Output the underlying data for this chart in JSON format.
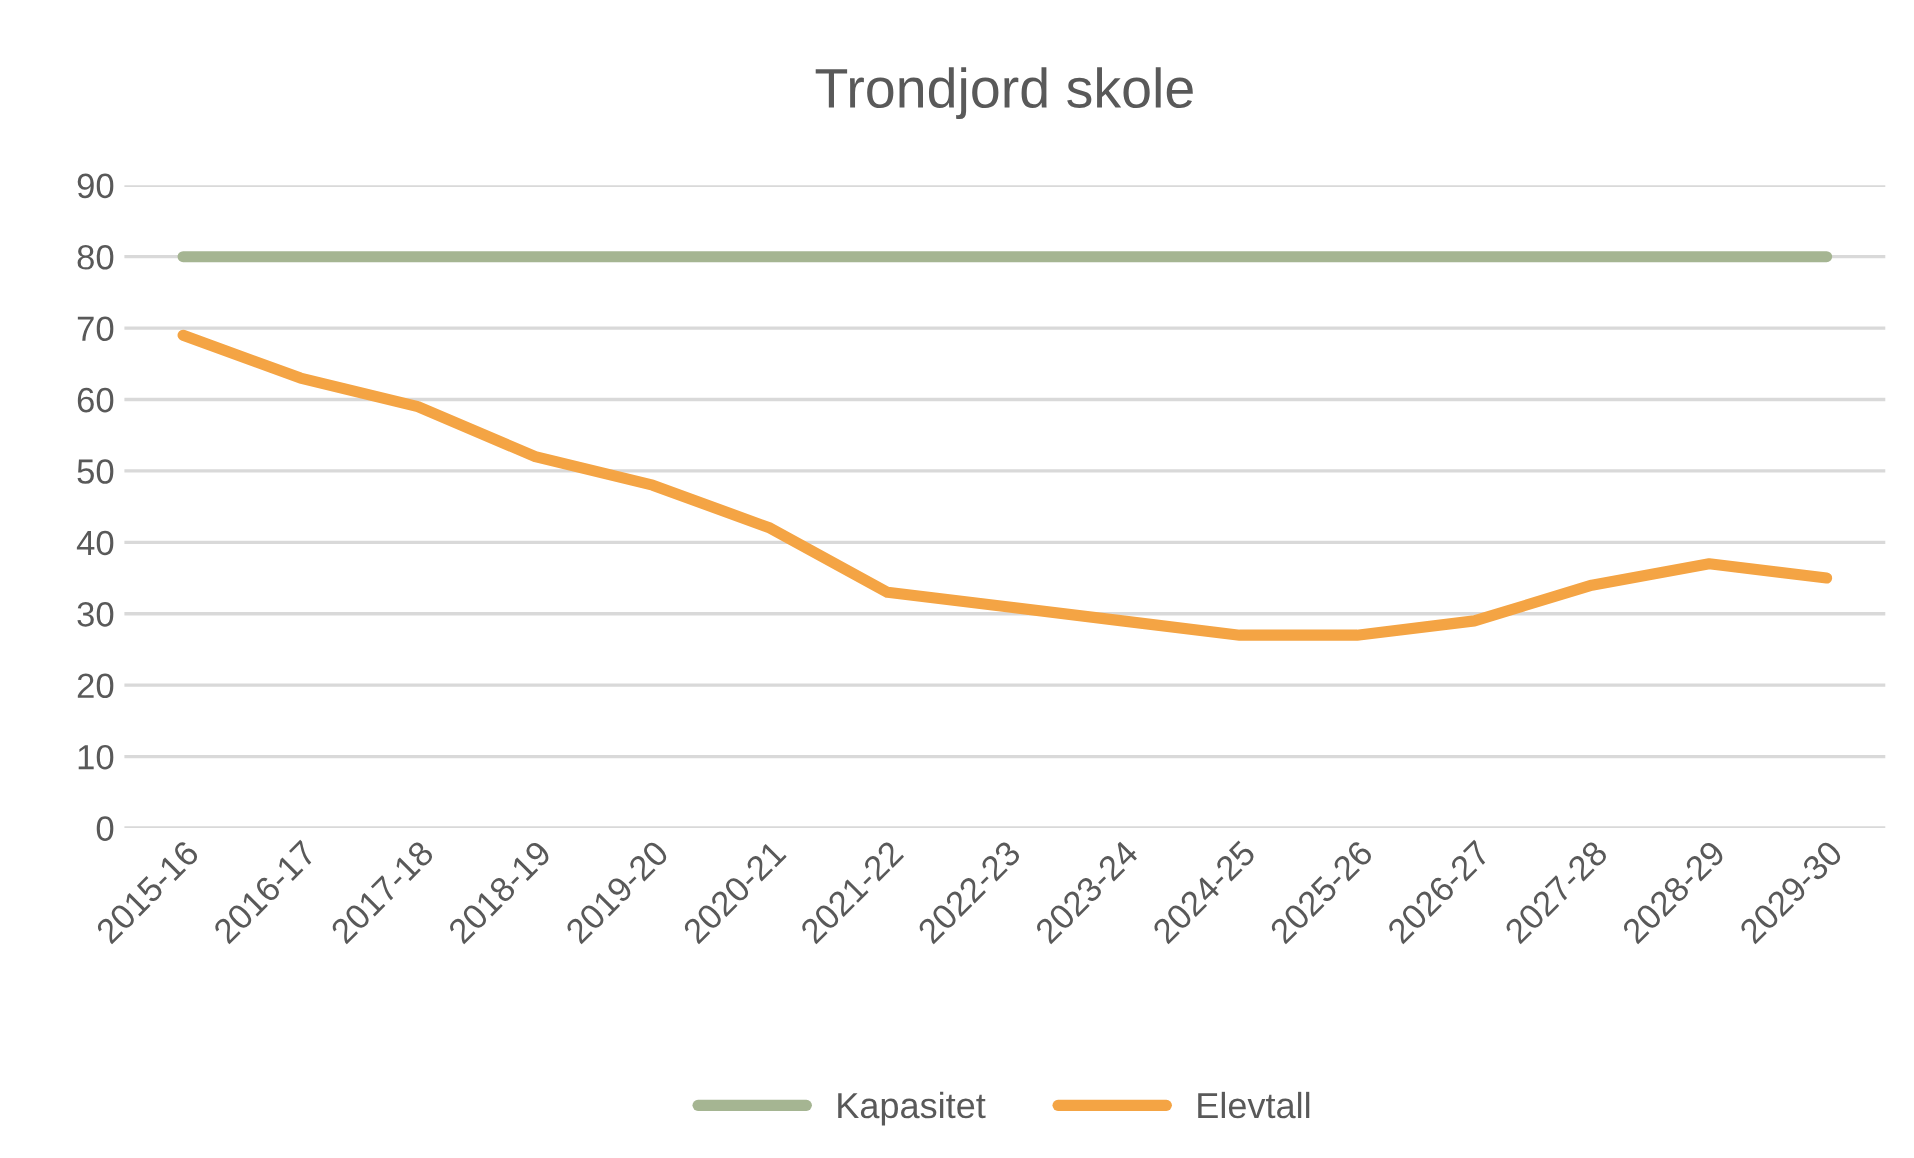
{
  "chart_data": {
    "type": "line",
    "title": "Trondjord skole",
    "categories": [
      "2015-16",
      "2016-17",
      "2017-18",
      "2018-19",
      "2019-20",
      "2020-21",
      "2021-22",
      "2022-23",
      "2023-24",
      "2024-25",
      "2025-26",
      "2026-27",
      "2027-28",
      "2028-29",
      "2029-30"
    ],
    "series": [
      {
        "name": "Kapasitet",
        "color": "#a5b592",
        "values": [
          80,
          80,
          80,
          80,
          80,
          80,
          80,
          80,
          80,
          80,
          80,
          80,
          80,
          80,
          80
        ]
      },
      {
        "name": "Elevtall",
        "color": "#f4a444",
        "values": [
          69,
          63,
          59,
          52,
          48,
          42,
          33,
          31,
          29,
          27,
          27,
          29,
          34,
          37,
          35
        ]
      }
    ],
    "ylim": [
      0,
      90
    ],
    "yticks": [
      0,
      10,
      20,
      30,
      40,
      50,
      60,
      70,
      80,
      90
    ],
    "grid": "y",
    "legend": "bottom",
    "marker": "none",
    "line_style": "solid"
  }
}
